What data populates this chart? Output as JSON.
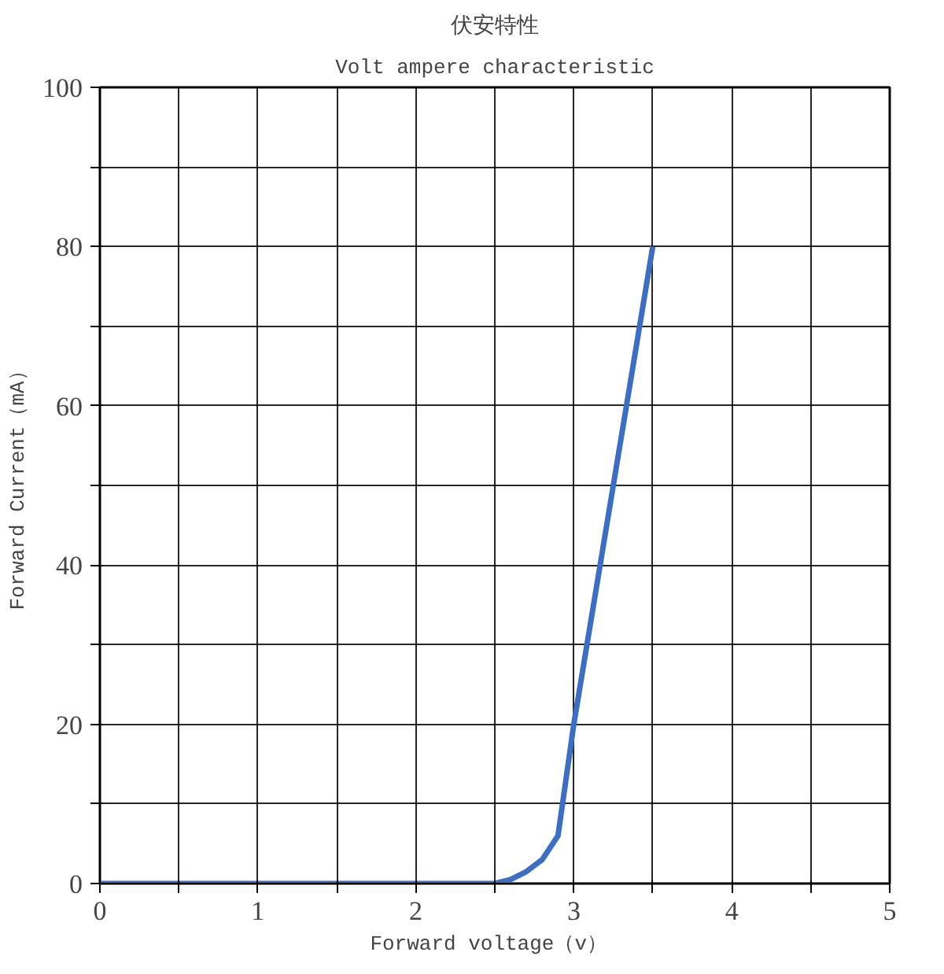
{
  "chart_data": {
    "type": "line",
    "title": "伏安特性",
    "subtitle": "Volt ampere characteristic",
    "xlabel": "Forward  voltage（v）",
    "ylabel": "Forward Current（mA）",
    "x": [
      0,
      0.5,
      1,
      1.5,
      2,
      2.5,
      2.6,
      2.7,
      2.8,
      2.9,
      3.0,
      3.25,
      3.5
    ],
    "series": [
      {
        "color": "#3a6fc4",
        "values": [
          0,
          0,
          0,
          0,
          0,
          0,
          0.5,
          1.5,
          3,
          6,
          20,
          50,
          80
        ]
      }
    ],
    "xlim": [
      0,
      5
    ],
    "ylim": [
      0,
      100
    ],
    "xticks": [
      0,
      {
        "value": 0.5,
        "label": null
      },
      1,
      {
        "value": 1.5,
        "label": null
      },
      2,
      {
        "value": 2.5,
        "label": null
      },
      3,
      {
        "value": 3.5,
        "label": null
      },
      4,
      {
        "value": 4.5,
        "label": null
      },
      5
    ],
    "yticks": [
      0,
      {
        "value": 10,
        "label": null
      },
      20,
      {
        "value": 30,
        "label": null
      },
      40,
      {
        "value": 50,
        "label": null
      },
      60,
      {
        "value": 70,
        "label": null
      },
      80,
      {
        "value": 90,
        "label": null
      },
      100
    ],
    "grid": true,
    "line_style": "solid",
    "marker": "none"
  }
}
